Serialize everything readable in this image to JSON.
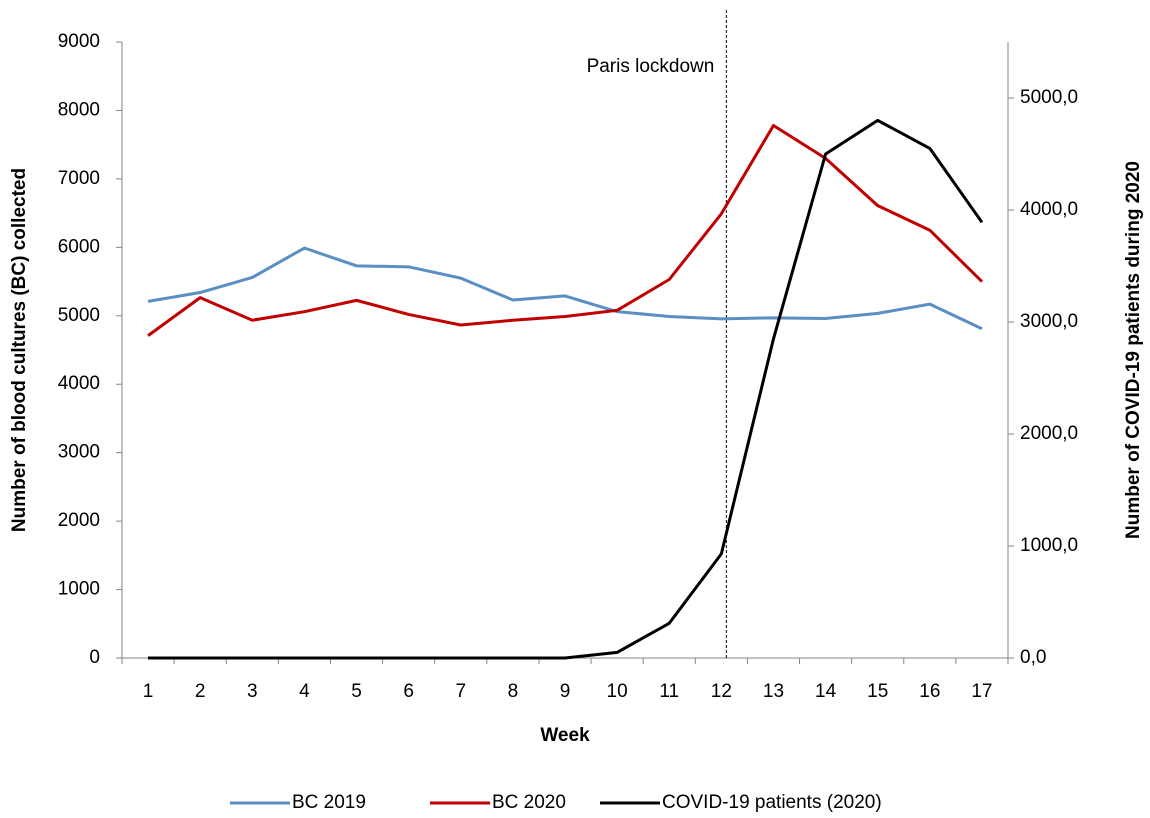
{
  "chart_data": {
    "type": "line",
    "x_label": "Week",
    "y_label": "Number of blood cultures (BC) collected",
    "y2_label": "Number of COVID-19 patients during 2020",
    "categories": [
      "1",
      "2",
      "3",
      "4",
      "5",
      "6",
      "7",
      "8",
      "9",
      "10",
      "11",
      "12",
      "13",
      "14",
      "15",
      "16",
      "17"
    ],
    "series": [
      {
        "name": "BC 2019",
        "color": "#5b8ec3",
        "values": [
          5210,
          5340,
          5560,
          5990,
          5730,
          5715,
          5550,
          5230,
          5290,
          5060,
          4990,
          4955,
          4970,
          4960,
          5035,
          5170,
          4810
        ]
      },
      {
        "name": "BC 2020",
        "color": "#c00000",
        "values": [
          4710,
          5265,
          4935,
          5060,
          5225,
          5020,
          4865,
          4935,
          4990,
          5080,
          5530,
          6490,
          7780,
          7300,
          6610,
          6250,
          5500
        ]
      },
      {
        "name": "COVID-19 patients (2020)",
        "color": "#000000",
        "axis": "y2",
        "values": [
          0,
          0,
          0,
          0,
          0,
          0,
          0,
          0,
          0,
          50,
          310,
          930,
          2850,
          4500,
          4800,
          4550,
          3890
        ]
      }
    ],
    "ylim": [
      0,
      9000
    ],
    "yticks": [
      0,
      1000,
      2000,
      3000,
      4000,
      5000,
      6000,
      7000,
      8000,
      9000
    ],
    "y2lim": [
      0,
      5500
    ],
    "y2ticks": [
      {
        "value": 0,
        "label": "0,0"
      },
      {
        "value": 1000,
        "label": "1000,0"
      },
      {
        "value": 2000,
        "label": "2000,0"
      },
      {
        "value": 3000,
        "label": "3000,0"
      },
      {
        "value": 4000,
        "label": "4000,0"
      },
      {
        "value": 5000,
        "label": "5000,0"
      }
    ],
    "annotation": {
      "text": "Paris lockdown",
      "x": "12"
    },
    "legend": "bottom",
    "grid": false
  }
}
